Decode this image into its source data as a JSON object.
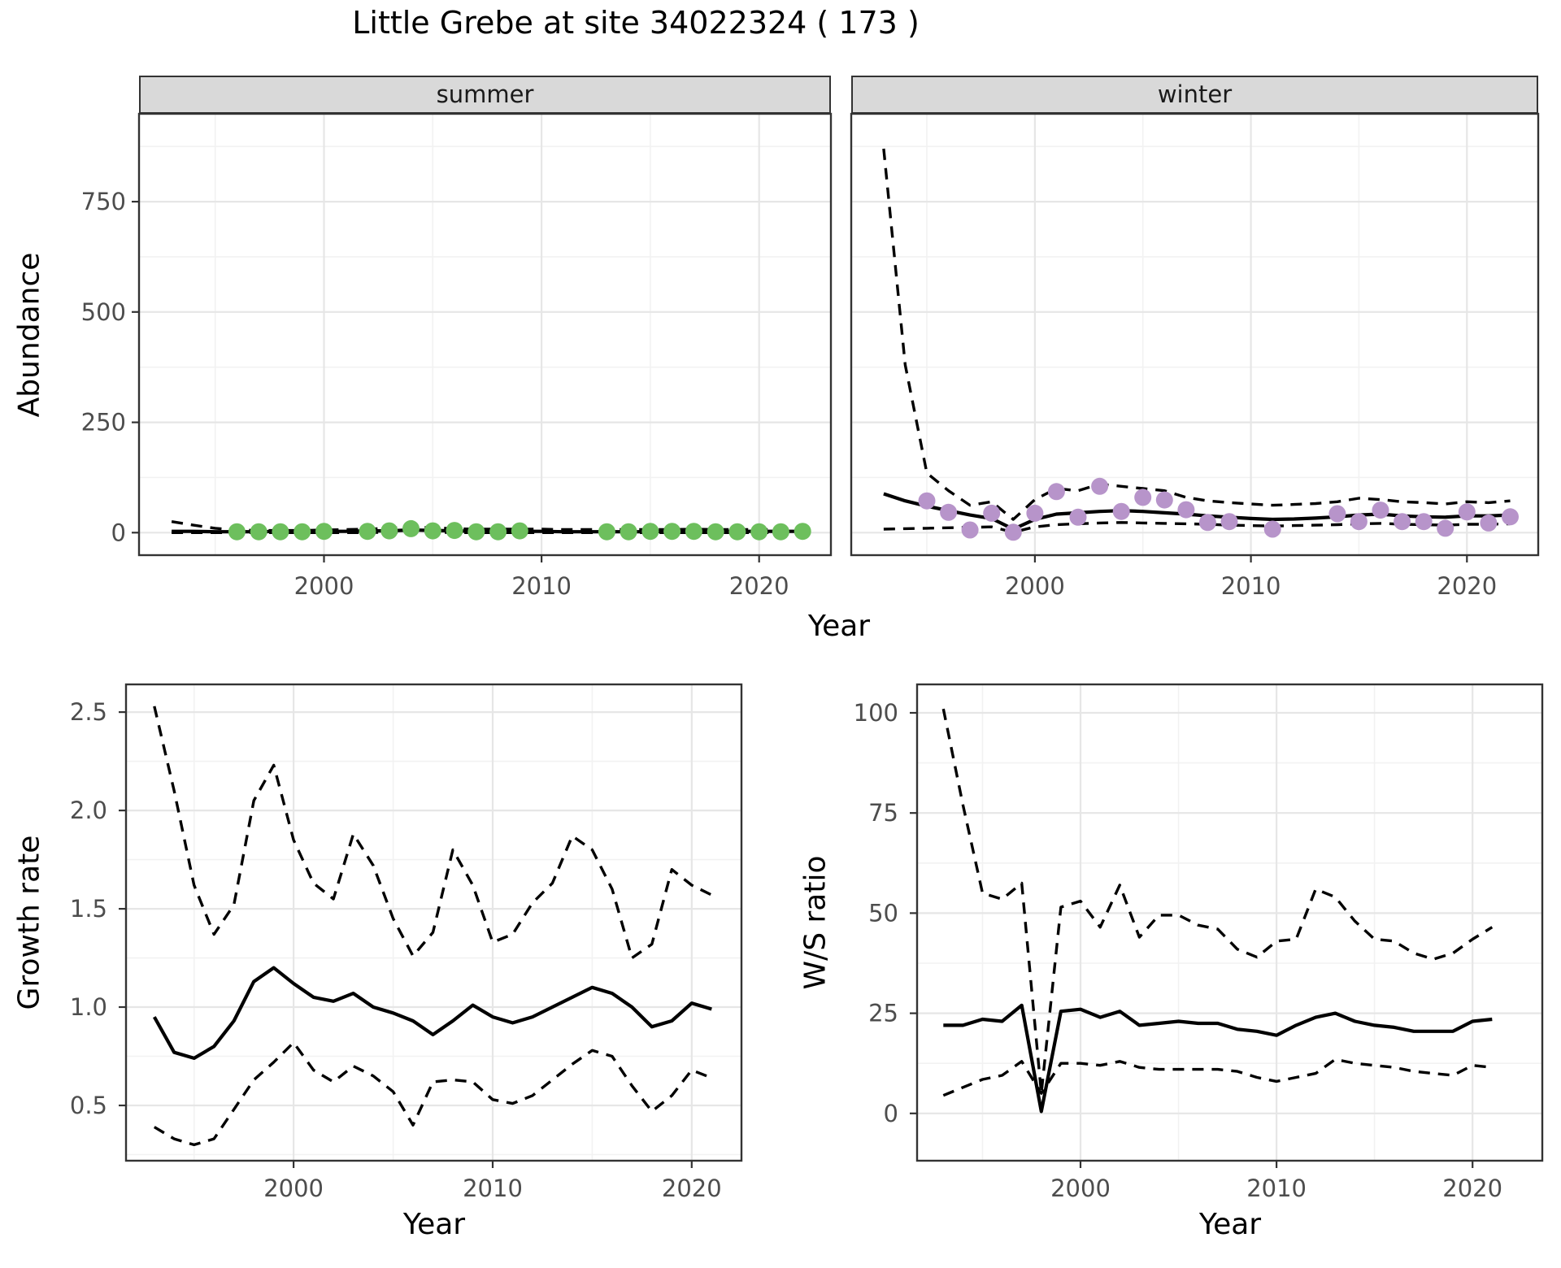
{
  "title": "Little Grebe at site 34022324 ( 173 )",
  "facets": {
    "summer": "summer",
    "winter": "winter"
  },
  "axis_titles": {
    "abundance": "Abundance",
    "growth_rate": "Growth rate",
    "ws_ratio": "W/S ratio",
    "year": "Year"
  },
  "colors": {
    "summer_point": "#6dbf5d",
    "winter_point": "#b794ca",
    "strip_bg": "#d9d9d9",
    "grid_major": "#e6e6e6",
    "grid_minor": "#f2f2f2",
    "panel_border": "#333333",
    "tick_label": "#4d4d4d",
    "line": "#000000"
  },
  "chart_data": [
    {
      "id": "abundance-summer",
      "type": "line",
      "facet": "summer",
      "title": "summer facet: abundance vs year with observed counts",
      "xlabel": "Year",
      "ylabel": "Abundance",
      "xlim": [
        1991.5,
        2023.3
      ],
      "ylim": [
        -51,
        949
      ],
      "x_ticks": [
        2000,
        2010,
        2020
      ],
      "x_tick_labels": [
        "2000",
        "2010",
        "2020"
      ],
      "y_ticks": [
        0,
        250,
        500,
        750
      ],
      "y_tick_labels": [
        "0",
        "250",
        "500",
        "750"
      ],
      "series": [
        {
          "name": "upper-ci",
          "style": "dashed",
          "x": [
            1993,
            1994,
            1995,
            1996,
            1997,
            1998,
            1999,
            2000,
            2001,
            2002,
            2003,
            2004,
            2005,
            2006,
            2007,
            2008,
            2009,
            2010,
            2011,
            2012,
            2013,
            2014,
            2015,
            2016,
            2017,
            2018,
            2019,
            2020,
            2021,
            2022
          ],
          "y": [
            25,
            17,
            10,
            6,
            5,
            5,
            5,
            6,
            7,
            8,
            10,
            13,
            11,
            9,
            8,
            8,
            8,
            8,
            7,
            7,
            7,
            7,
            7,
            7,
            8,
            7,
            7,
            7,
            7,
            8
          ]
        },
        {
          "name": "lower-ci",
          "style": "dashed",
          "x": [
            1993,
            1994,
            1995,
            1996,
            1997,
            1998,
            1999,
            2000,
            2001,
            2002,
            2003,
            2004,
            2005,
            2006,
            2007,
            2008,
            2009,
            2010,
            2011,
            2012,
            2013,
            2014,
            2015,
            2016,
            2017,
            2018,
            2019,
            2020,
            2021,
            2022
          ],
          "y": [
            0,
            0,
            0,
            0,
            0,
            0,
            0,
            0,
            0,
            0,
            1,
            1,
            1,
            0,
            0,
            0,
            0,
            0,
            0,
            0,
            0,
            0,
            0,
            0,
            0,
            0,
            0,
            0,
            0,
            0
          ]
        },
        {
          "name": "mean",
          "style": "solid",
          "x": [
            1993,
            1994,
            1995,
            1996,
            1997,
            1998,
            1999,
            2000,
            2001,
            2002,
            2003,
            2004,
            2005,
            2006,
            2007,
            2008,
            2009,
            2010,
            2011,
            2012,
            2013,
            2014,
            2015,
            2016,
            2017,
            2018,
            2019,
            2020,
            2021,
            2022
          ],
          "y": [
            3,
            3,
            2,
            2,
            2,
            3,
            3,
            3,
            3,
            4,
            4,
            6,
            5,
            4,
            3,
            3,
            3,
            3,
            2,
            2,
            2,
            2,
            2,
            3,
            3,
            3,
            3,
            3,
            3,
            3
          ]
        }
      ],
      "points": {
        "color_key": "summer_point",
        "x": [
          1996,
          1997,
          1998,
          1999,
          2000,
          2002,
          2003,
          2004,
          2005,
          2006,
          2007,
          2008,
          2009,
          2013,
          2014,
          2015,
          2016,
          2017,
          2018,
          2019,
          2020,
          2021,
          2022
        ],
        "y": [
          2,
          2,
          2,
          2,
          3,
          3,
          4,
          9,
          4,
          5,
          2,
          2,
          4,
          2,
          2,
          3,
          3,
          3,
          2,
          2,
          2,
          2,
          3
        ]
      }
    },
    {
      "id": "abundance-winter",
      "type": "line",
      "facet": "winter",
      "title": "winter facet: abundance vs year with observed counts",
      "xlabel": "Year",
      "ylabel": "Abundance",
      "xlim": [
        1991.5,
        2023.3
      ],
      "ylim": [
        -51,
        949
      ],
      "x_ticks": [
        2000,
        2010,
        2020
      ],
      "x_tick_labels": [
        "2000",
        "2010",
        "2020"
      ],
      "y_ticks": [
        0,
        250,
        500,
        750
      ],
      "y_tick_labels": [
        "0",
        "250",
        "500",
        "750"
      ],
      "series": [
        {
          "name": "upper-ci",
          "style": "dashed",
          "x": [
            1993,
            1994,
            1995,
            1996,
            1997,
            1998,
            1999,
            2000,
            2001,
            2002,
            2003,
            2004,
            2005,
            2006,
            2007,
            2008,
            2009,
            2010,
            2011,
            2012,
            2013,
            2014,
            2015,
            2016,
            2017,
            2018,
            2019,
            2020,
            2021,
            2022
          ],
          "y": [
            870,
            380,
            135,
            95,
            62,
            70,
            30,
            75,
            100,
            95,
            110,
            105,
            100,
            95,
            80,
            72,
            68,
            65,
            62,
            64,
            66,
            70,
            78,
            75,
            70,
            68,
            65,
            70,
            68,
            72
          ]
        },
        {
          "name": "lower-ci",
          "style": "dashed",
          "x": [
            1993,
            1994,
            1995,
            1996,
            1997,
            1998,
            1999,
            2000,
            2001,
            2002,
            2003,
            2004,
            2005,
            2006,
            2007,
            2008,
            2009,
            2010,
            2011,
            2012,
            2013,
            2014,
            2015,
            2016,
            2017,
            2018,
            2019,
            2020,
            2021,
            2022
          ],
          "y": [
            8,
            9,
            10,
            11,
            12,
            13,
            1,
            13,
            18,
            20,
            22,
            23,
            22,
            21,
            20,
            19,
            17,
            16,
            15,
            16,
            17,
            18,
            20,
            21,
            19,
            18,
            17,
            19,
            19,
            20
          ]
        },
        {
          "name": "mean",
          "style": "solid",
          "x": [
            1993,
            1994,
            1995,
            1996,
            1997,
            1998,
            1999,
            2000,
            2001,
            2002,
            2003,
            2004,
            2005,
            2006,
            2007,
            2008,
            2009,
            2010,
            2011,
            2012,
            2013,
            2014,
            2015,
            2016,
            2017,
            2018,
            2019,
            2020,
            2021,
            2022
          ],
          "y": [
            88,
            72,
            60,
            50,
            40,
            32,
            8,
            30,
            42,
            45,
            48,
            50,
            48,
            45,
            42,
            38,
            35,
            32,
            30,
            31,
            33,
            36,
            40,
            42,
            38,
            36,
            35,
            38,
            38,
            40
          ]
        }
      ],
      "points": {
        "color_key": "winter_point",
        "x": [
          1995,
          1996,
          1997,
          1998,
          1999,
          2000,
          2001,
          2002,
          2003,
          2004,
          2005,
          2006,
          2007,
          2008,
          2009,
          2011,
          2014,
          2015,
          2016,
          2017,
          2018,
          2019,
          2020,
          2021,
          2022
        ],
        "y": [
          72,
          46,
          6,
          44,
          1,
          44,
          93,
          35,
          105,
          48,
          80,
          74,
          52,
          23,
          25,
          8,
          43,
          25,
          51,
          25,
          25,
          10,
          47,
          22,
          36
        ]
      }
    },
    {
      "id": "growth-rate",
      "type": "line",
      "facet": null,
      "title": "growth rate vs year with confidence band",
      "xlabel": "Year",
      "ylabel": "Growth rate",
      "xlim": [
        1991.58,
        2022.5
      ],
      "ylim": [
        0.219,
        2.641
      ],
      "x_ticks": [
        2000,
        2010,
        2020
      ],
      "x_tick_labels": [
        "2000",
        "2010",
        "2020"
      ],
      "y_ticks": [
        0.5,
        1.0,
        1.5,
        2.0,
        2.5
      ],
      "y_tick_labels": [
        "0.5",
        "1.0",
        "1.5",
        "2.0",
        "2.5"
      ],
      "series": [
        {
          "name": "upper-ci",
          "style": "dashed",
          "x": [
            1993,
            1994,
            1995,
            1996,
            1997,
            1998,
            1999,
            2000,
            2001,
            2002,
            2003,
            2004,
            2005,
            2006,
            2007,
            2008,
            2009,
            2010,
            2011,
            2012,
            2013,
            2014,
            2015,
            2016,
            2017,
            2018,
            2019,
            2020,
            2021
          ],
          "y": [
            2.53,
            2.1,
            1.62,
            1.37,
            1.52,
            2.05,
            2.23,
            1.85,
            1.63,
            1.55,
            1.88,
            1.72,
            1.45,
            1.26,
            1.38,
            1.8,
            1.62,
            1.33,
            1.37,
            1.53,
            1.63,
            1.87,
            1.8,
            1.6,
            1.25,
            1.32,
            1.7,
            1.62,
            1.57
          ]
        },
        {
          "name": "lower-ci",
          "style": "dashed",
          "x": [
            1993,
            1994,
            1995,
            1996,
            1997,
            1998,
            1999,
            2000,
            2001,
            2002,
            2003,
            2004,
            2005,
            2006,
            2007,
            2008,
            2009,
            2010,
            2011,
            2012,
            2013,
            2014,
            2015,
            2016,
            2017,
            2018,
            2019,
            2020,
            2021
          ],
          "y": [
            0.39,
            0.33,
            0.3,
            0.33,
            0.48,
            0.63,
            0.72,
            0.82,
            0.68,
            0.62,
            0.7,
            0.65,
            0.57,
            0.4,
            0.62,
            0.63,
            0.62,
            0.53,
            0.51,
            0.55,
            0.63,
            0.71,
            0.78,
            0.75,
            0.6,
            0.47,
            0.55,
            0.68,
            0.64
          ]
        },
        {
          "name": "mean",
          "style": "solid",
          "x": [
            1993,
            1994,
            1995,
            1996,
            1997,
            1998,
            1999,
            2000,
            2001,
            2002,
            2003,
            2004,
            2005,
            2006,
            2007,
            2008,
            2009,
            2010,
            2011,
            2012,
            2013,
            2014,
            2015,
            2016,
            2017,
            2018,
            2019,
            2020,
            2021
          ],
          "y": [
            0.95,
            0.77,
            0.74,
            0.8,
            0.93,
            1.13,
            1.2,
            1.12,
            1.05,
            1.03,
            1.07,
            1.0,
            0.97,
            0.93,
            0.86,
            0.93,
            1.01,
            0.95,
            0.92,
            0.95,
            1.0,
            1.05,
            1.1,
            1.07,
            1.0,
            0.9,
            0.93,
            1.02,
            0.99
          ]
        }
      ],
      "points": null
    },
    {
      "id": "ws-ratio",
      "type": "line",
      "facet": null,
      "title": "winter/summer ratio vs year with confidence band",
      "xlabel": "Year",
      "ylabel": "W/S ratio",
      "xlim": [
        1991.66,
        2023.56
      ],
      "ylim": [
        -11.8,
        107.1
      ],
      "x_ticks": [
        2000,
        2010,
        2020
      ],
      "x_tick_labels": [
        "2000",
        "2010",
        "2020"
      ],
      "y_ticks": [
        0,
        25,
        50,
        75,
        100
      ],
      "y_tick_labels": [
        "0",
        "25",
        "50",
        "75",
        "100"
      ],
      "series": [
        {
          "name": "upper-ci",
          "style": "dashed",
          "x": [
            1993,
            1994,
            1995,
            1996,
            1997,
            1998,
            1999,
            2000,
            2001,
            2002,
            2003,
            2004,
            2005,
            2006,
            2007,
            2008,
            2009,
            2010,
            2011,
            2012,
            2013,
            2014,
            2015,
            2016,
            2017,
            2018,
            2019,
            2020,
            2021
          ],
          "y": [
            101,
            77,
            55,
            53.5,
            57.5,
            5,
            51.5,
            53,
            46.5,
            57,
            44,
            49.5,
            49.5,
            47,
            46,
            41,
            39,
            43,
            43.5,
            56,
            54,
            48,
            43.5,
            43,
            40,
            38.5,
            40,
            43.5,
            46.5
          ]
        },
        {
          "name": "lower-ci",
          "style": "dashed",
          "x": [
            1993,
            1994,
            1995,
            1996,
            1997,
            1998,
            1999,
            2000,
            2001,
            2002,
            2003,
            2004,
            2005,
            2006,
            2007,
            2008,
            2009,
            2010,
            2011,
            2012,
            2013,
            2014,
            2015,
            2016,
            2017,
            2018,
            2019,
            2020,
            2021
          ],
          "y": [
            4.5,
            6.5,
            8.5,
            9.5,
            13,
            5,
            12.5,
            12.5,
            12,
            13,
            11.5,
            11,
            11,
            11,
            11,
            10.5,
            9,
            8,
            9,
            10,
            13.5,
            12.5,
            12,
            11.5,
            10.5,
            10,
            9.5,
            12,
            11.5
          ]
        },
        {
          "name": "mean",
          "style": "solid",
          "x": [
            1993,
            1994,
            1995,
            1996,
            1997,
            1998,
            1999,
            2000,
            2001,
            2002,
            2003,
            2004,
            2005,
            2006,
            2007,
            2008,
            2009,
            2010,
            2011,
            2012,
            2013,
            2014,
            2015,
            2016,
            2017,
            2018,
            2019,
            2020,
            2021
          ],
          "y": [
            22,
            22,
            23.5,
            23,
            27,
            0.5,
            25.5,
            26,
            24,
            25.5,
            22,
            22.5,
            23,
            22.5,
            22.5,
            21,
            20.5,
            19.5,
            22,
            24,
            25,
            23,
            22,
            21.5,
            20.5,
            20.5,
            20.5,
            23,
            23.5
          ]
        }
      ],
      "points": null
    }
  ]
}
